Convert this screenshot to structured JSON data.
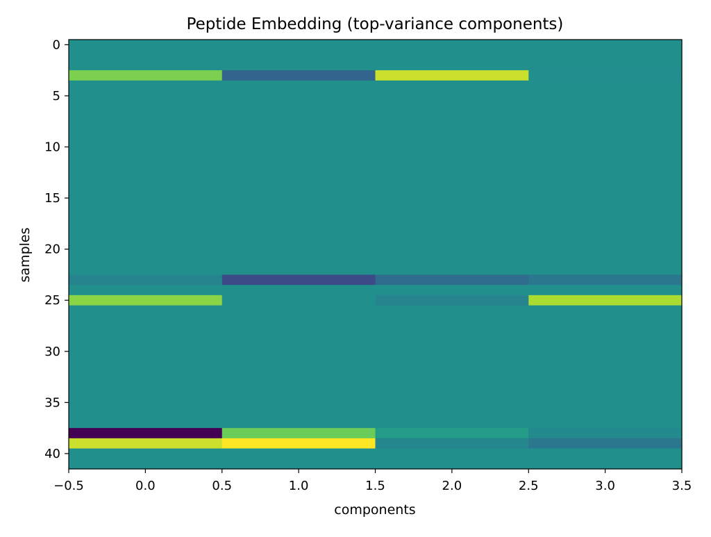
{
  "chart_data": {
    "type": "heatmap",
    "title": "Peptide Embedding (top-variance components)",
    "xlabel": "components",
    "ylabel": "samples",
    "xlim": [
      -0.5,
      3.5
    ],
    "ylim": [
      41.5,
      -0.5
    ],
    "x_ticks": [
      "−0.5",
      "0.0",
      "0.5",
      "1.0",
      "1.5",
      "2.0",
      "2.5",
      "3.0",
      "3.5"
    ],
    "x_tick_values": [
      -0.5,
      0.0,
      0.5,
      1.0,
      1.5,
      2.0,
      2.5,
      3.0,
      3.5
    ],
    "y_ticks": [
      "0",
      "5",
      "10",
      "15",
      "20",
      "25",
      "30",
      "35",
      "40"
    ],
    "y_tick_values": [
      0,
      5,
      10,
      15,
      20,
      25,
      30,
      35,
      40
    ],
    "n_rows": 42,
    "n_cols": 4,
    "colormap": "viridis",
    "background_value": 0.0,
    "value_range": [
      -1.0,
      1.0
    ],
    "nonzero_rows": [
      {
        "row": 3,
        "values": [
          0.6,
          -0.35,
          0.85,
          -0.02
        ]
      },
      {
        "row": 23,
        "values": [
          -0.1,
          -0.55,
          -0.3,
          -0.2
        ]
      },
      {
        "row": 25,
        "values": [
          0.65,
          0.0,
          -0.1,
          0.75
        ]
      },
      {
        "row": 38,
        "values": [
          -1.0,
          0.55,
          0.1,
          -0.05
        ]
      },
      {
        "row": 39,
        "values": [
          0.85,
          1.0,
          -0.08,
          -0.2
        ]
      }
    ],
    "grid": false,
    "legend": "none"
  }
}
